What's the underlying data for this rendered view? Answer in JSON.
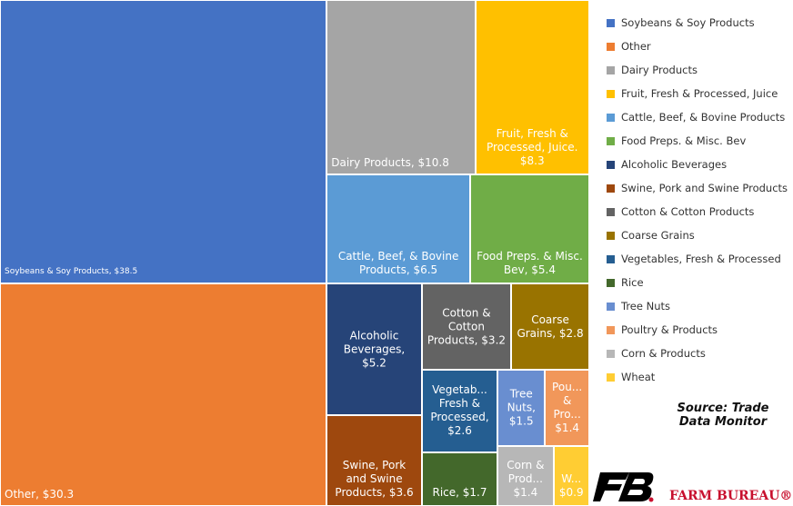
{
  "chart_data": {
    "type": "treemap",
    "categories": [
      "Soybeans & Soy Products",
      "Other",
      "Dairy Products",
      "Fruit, Fresh & Processed, Juice",
      "Cattle, Beef, & Bovine Products",
      "Food Preps. & Misc. Bev",
      "Alcoholic Beverages",
      "Swine, Pork and Swine Products",
      "Cotton & Cotton Products",
      "Coarse Grains",
      "Vegetables, Fresh & Processed",
      "Rice",
      "Tree Nuts",
      "Poultry & Products",
      "Corn & Products",
      "Wheat"
    ],
    "tile_labels": [
      "Soybeans & Soy Products,",
      "Other,",
      "Dairy Products,",
      "Fruit, Fresh & Processed, Juice.",
      "Cattle, Beef, & Bovine Products,",
      "Food Preps. & Misc. Bev,",
      "Alcoholic Beverages,",
      "Swine, Pork and Swine Products,",
      "Cotton & Cotton Products,",
      "Coarse Grains,",
      "Vegetab... Fresh & Processed,",
      "Rice,",
      "Tree Nuts,",
      "Pou... & Pro...",
      "Corn & Prod...",
      "W..."
    ],
    "values": [
      38.5,
      30.3,
      10.8,
      8.3,
      6.5,
      5.4,
      5.2,
      3.6,
      3.2,
      2.8,
      2.6,
      1.7,
      1.5,
      1.4,
      1.4,
      0.9
    ],
    "value_labels": [
      "$38.5",
      "$30.3",
      "$10.8",
      "$8.3",
      "$6.5",
      "$5.4",
      "$5.2",
      "$3.6",
      "$3.2",
      "$2.8",
      "$2.6",
      "$1.7",
      "$1.5",
      "$1.4",
      "$1.4",
      "$0.9"
    ],
    "colors": [
      "#4472c4",
      "#ed7d31",
      "#a5a5a5",
      "#ffc000",
      "#5b9bd5",
      "#70ad47",
      "#264478",
      "#9e480e",
      "#636363",
      "#997300",
      "#255e91",
      "#43682b",
      "#698ed0",
      "#f1975a",
      "#b7b7b7",
      "#ffcd33"
    ],
    "source": "Source: Trade Data Monitor",
    "brand": "FARM BUREAU®"
  }
}
